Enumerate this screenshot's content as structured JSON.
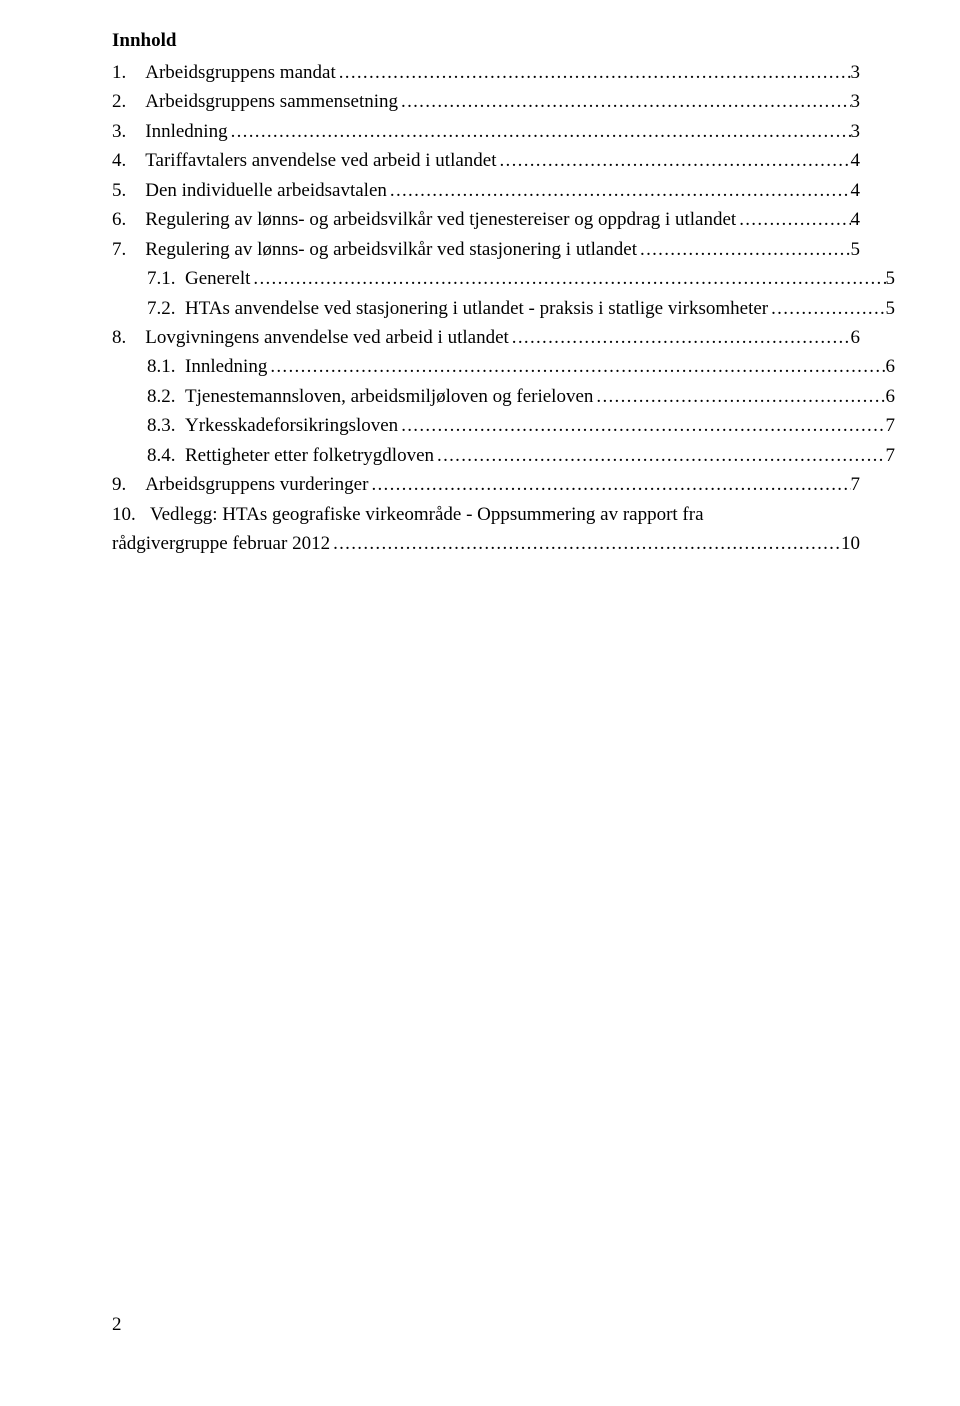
{
  "title": "Innhold",
  "leader_fill": "..................................................................................................................................................................................................................................",
  "toc": [
    {
      "level": 1,
      "num": "1.",
      "label": "Arbeidsgruppens mandat",
      "page": "3"
    },
    {
      "level": 1,
      "num": "2.",
      "label": "Arbeidsgruppens sammensetning",
      "page": "3"
    },
    {
      "level": 1,
      "num": "3.",
      "label": "Innledning",
      "page": "3"
    },
    {
      "level": 1,
      "num": "4.",
      "label": "Tariffavtalers anvendelse ved arbeid i utlandet",
      "page": "4"
    },
    {
      "level": 1,
      "num": "5.",
      "label": "Den individuelle arbeidsavtalen",
      "page": "4"
    },
    {
      "level": 1,
      "num": "6.",
      "label": "Regulering av lønns- og arbeidsvilkår ved tjenestereiser og oppdrag i utlandet",
      "page": "4"
    },
    {
      "level": 1,
      "num": "7.",
      "label": "Regulering av lønns- og arbeidsvilkår ved stasjonering i utlandet",
      "page": "5"
    },
    {
      "level": 2,
      "num": "7.1.",
      "label": "Generelt",
      "page": "5"
    },
    {
      "level": 2,
      "num": "7.2.",
      "label": "HTAs anvendelse ved stasjonering i utlandet - praksis i statlige virksomheter",
      "page": "5"
    },
    {
      "level": 1,
      "num": "8.",
      "label": "Lovgivningens anvendelse ved arbeid i utlandet",
      "page": "6"
    },
    {
      "level": 2,
      "num": "8.1.",
      "label": "Innledning",
      "page": "6"
    },
    {
      "level": 2,
      "num": "8.2.",
      "label": "Tjenestemannsloven, arbeidsmiljøloven og ferieloven",
      "page": "6"
    },
    {
      "level": 2,
      "num": "8.3.",
      "label": "Yrkesskadeforsikringsloven",
      "page": "7"
    },
    {
      "level": 2,
      "num": "8.4.",
      "label": "Rettigheter etter folketrygdloven",
      "page": "7"
    },
    {
      "level": 1,
      "num": "9.",
      "label": "Arbeidsgruppens vurderinger",
      "page": "7"
    },
    {
      "level": 1,
      "num": "10.",
      "label_line1": "Vedlegg: HTAs geografiske virkeområde - Oppsummering av rapport fra",
      "label_line2": "rådgivergruppe februar 2012",
      "page": "10",
      "wrap": true
    }
  ],
  "page_number": "2"
}
